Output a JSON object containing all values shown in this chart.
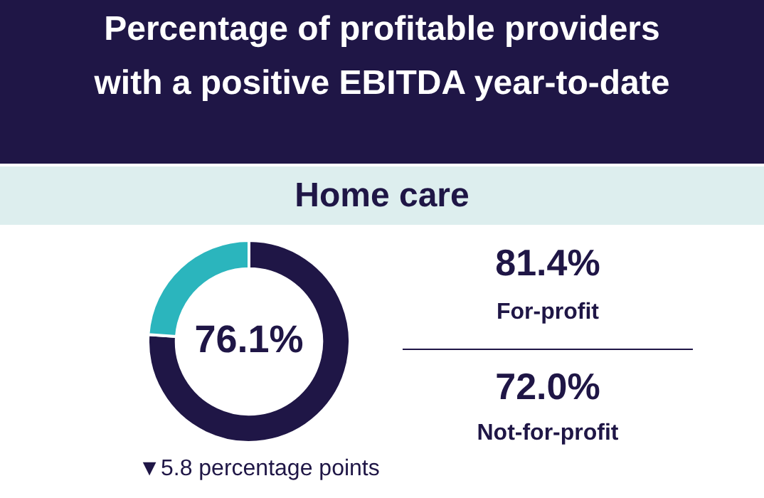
{
  "chart_data": {
    "type": "donut",
    "title": "Percentage of profitable providers\nwith a positive EBITDA year-to-date",
    "subtitle": "Home care",
    "categories": [
      null,
      null
    ],
    "values": [
      76.1,
      23.9
    ],
    "colors": [
      "#1f1646",
      "#2bb5bd"
    ],
    "value_labels": [
      "76.1%",
      null
    ],
    "annotations": [
      "81.4%",
      "For-profit",
      "72.0%",
      "Not-for-profit",
      "▼5.8 percentage points"
    ],
    "legend": false
  }
}
